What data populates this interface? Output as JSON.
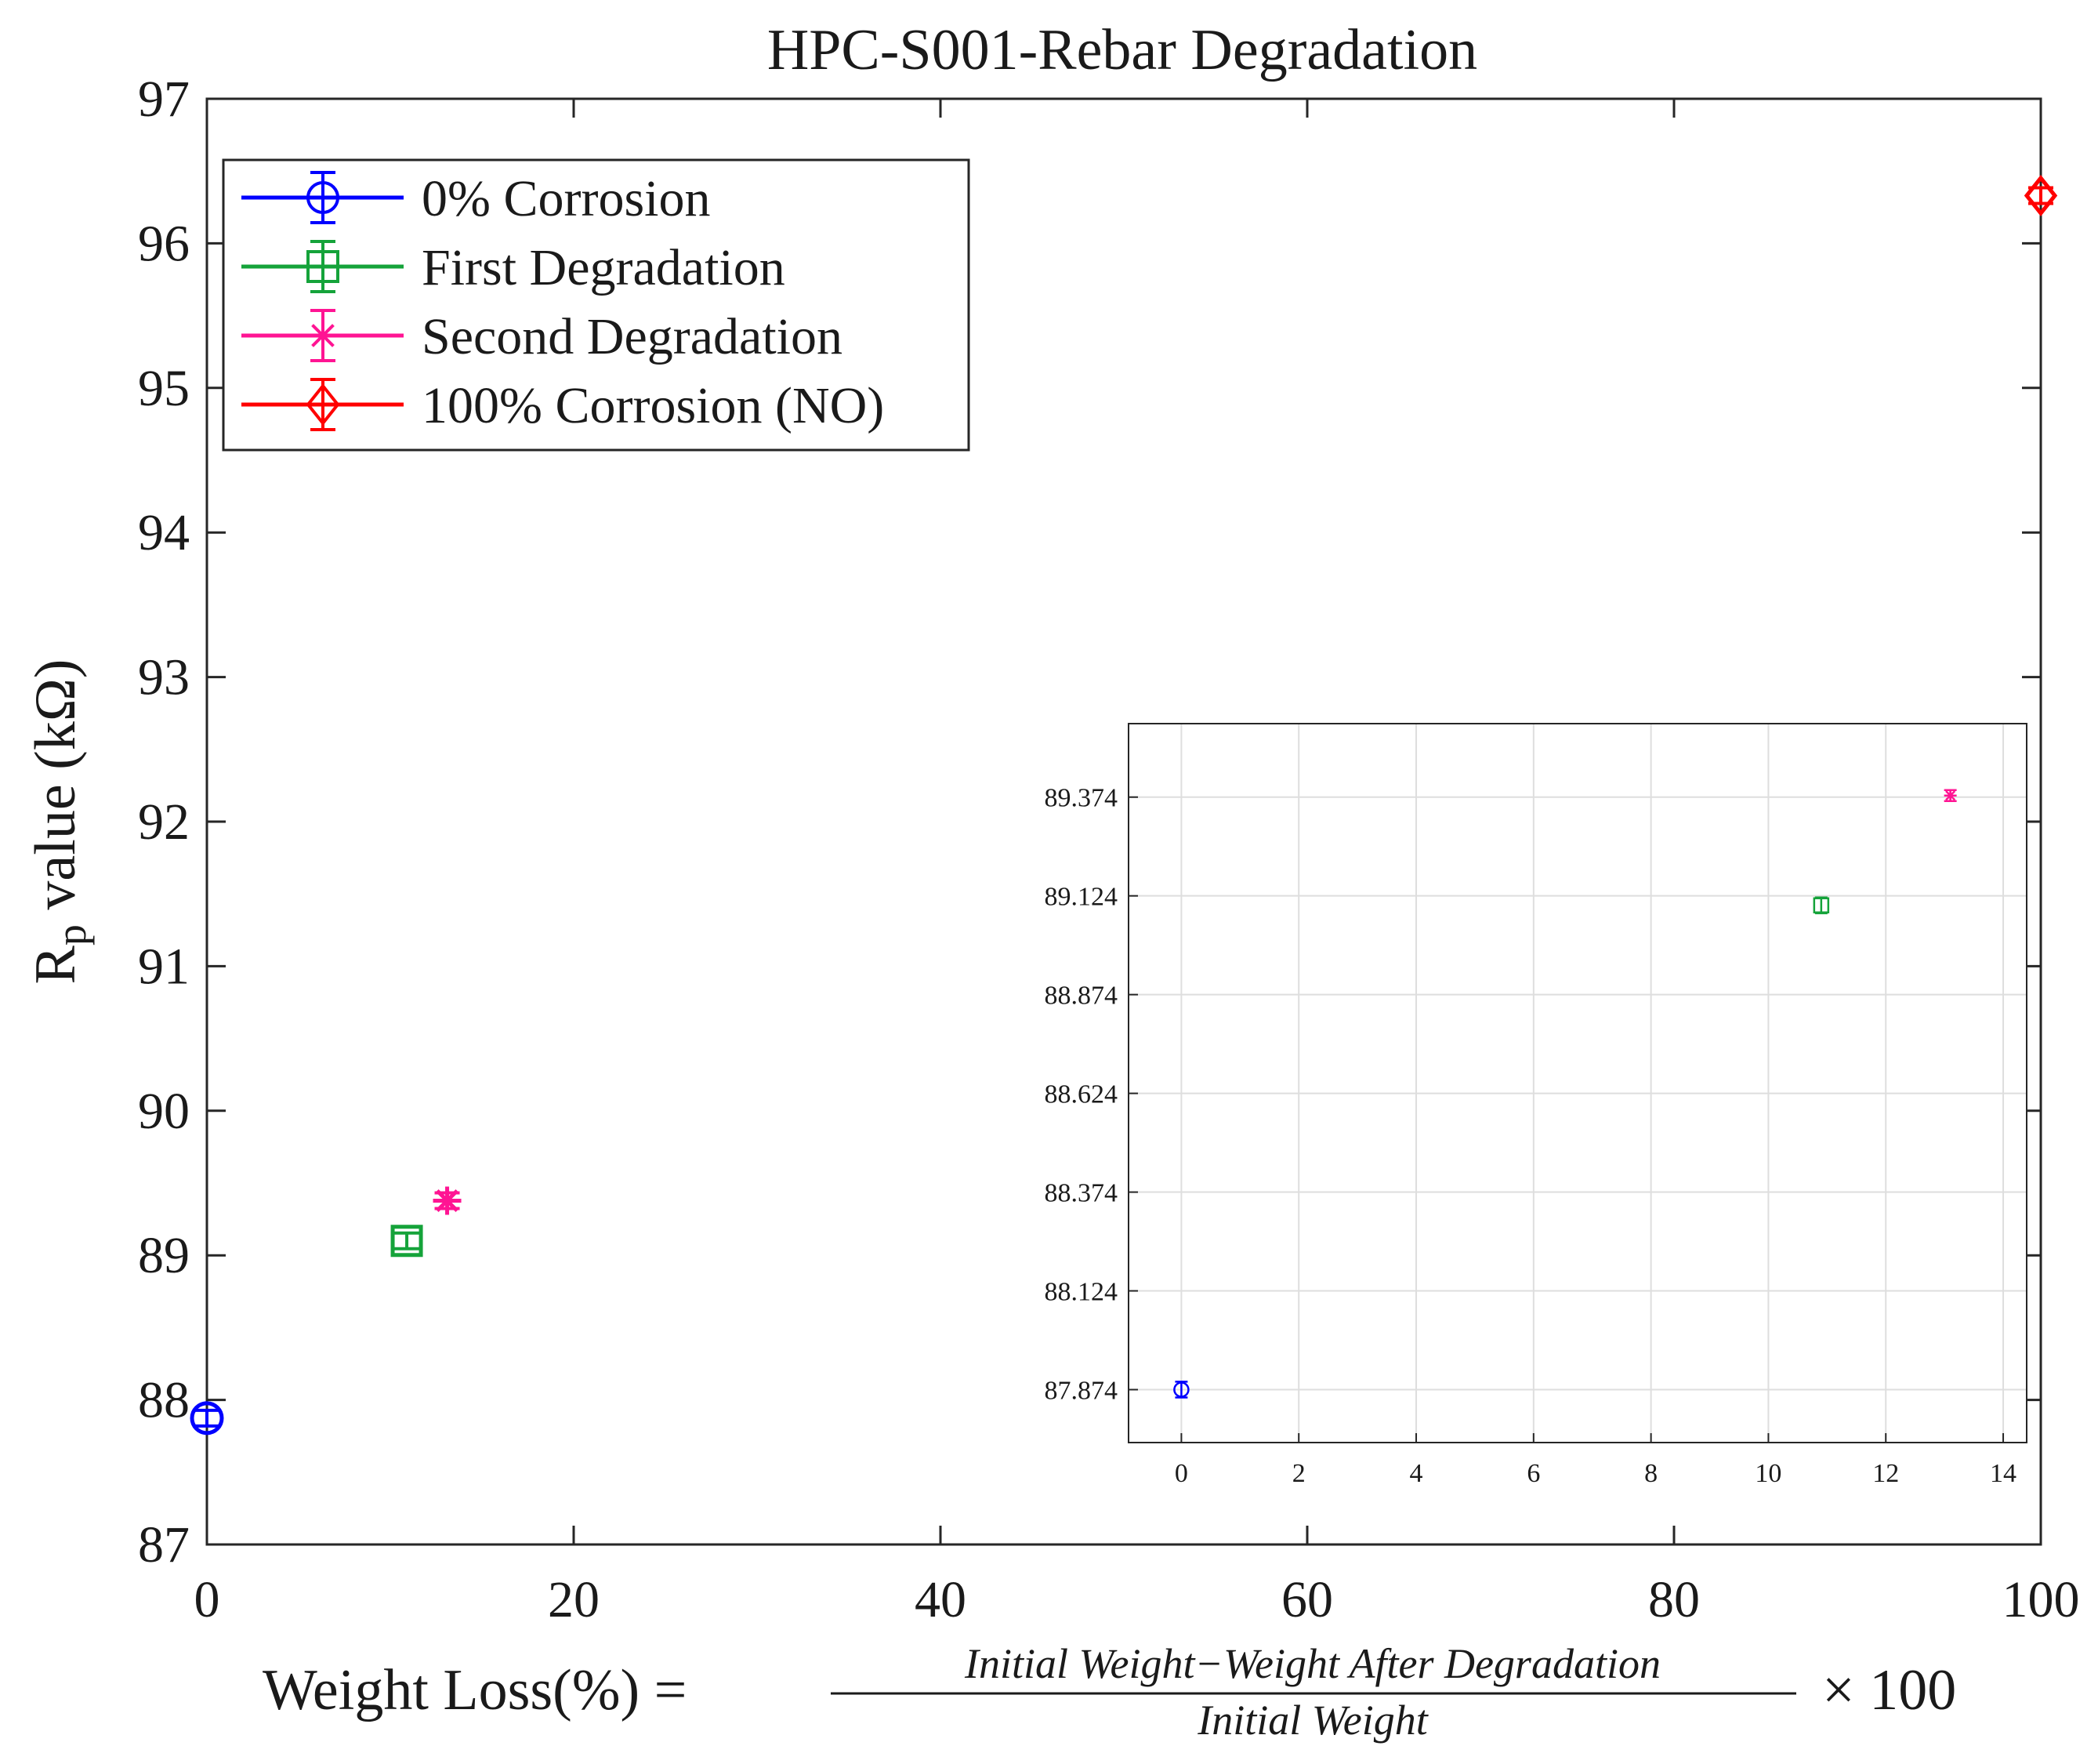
{
  "chart_data": [
    {
      "type": "scatter",
      "title": "HPC-S001-Rebar Degradation",
      "xlabel": {
        "prefix": "Weight Loss(%) =",
        "numerator": "Initial Weight−Weight After Degradation",
        "denominator": "Initial Weight",
        "suffix": "× 100"
      },
      "ylabel": {
        "main": "R",
        "sub": "p",
        "rest": " value (kΩ)"
      },
      "xlim": [
        0,
        100
      ],
      "ylim": [
        87,
        97
      ],
      "xticks": [
        "0",
        "20",
        "40",
        "60",
        "80",
        "100"
      ],
      "yticks": [
        "87",
        "88",
        "89",
        "90",
        "91",
        "92",
        "93",
        "94",
        "95",
        "96",
        "97"
      ],
      "legend_position": "top-left",
      "series": [
        {
          "name": "0% Corrosion",
          "marker": "circle",
          "color": "#0000ff",
          "x": 0,
          "y": 87.874,
          "err": 0.05
        },
        {
          "name": "First Degradation",
          "marker": "square",
          "color": "#15a33a",
          "x": 10.9,
          "y": 89.1,
          "err": 0.05
        },
        {
          "name": "Second Degradation",
          "marker": "star",
          "color": "#ff1493",
          "x": 13.1,
          "y": 89.378,
          "err": 0.03
        },
        {
          "name": "100% Corrosion (NO)",
          "marker": "diamond",
          "color": "#ff0000",
          "x": 100,
          "y": 96.33,
          "err": 0.04
        }
      ]
    },
    {
      "type": "scatter",
      "role": "inset",
      "grid": true,
      "xlim": [
        -0.9,
        14.4
      ],
      "ylim": [
        87.74,
        89.56
      ],
      "xticks": [
        0,
        2,
        4,
        6,
        8,
        10,
        12,
        14
      ],
      "yticks": [
        87.874,
        88.124,
        88.374,
        88.624,
        88.874,
        89.124,
        89.374
      ],
      "xticklabels": [
        "0",
        "2",
        "4",
        "6",
        "8",
        "10",
        "12",
        "14"
      ],
      "yticklabels": [
        "87.874",
        "88.124",
        "88.374",
        "88.624",
        "88.874",
        "89.124",
        "89.374"
      ],
      "series": [
        {
          "name": "0% Corrosion",
          "marker": "circle",
          "color": "#0000ff",
          "x": 0,
          "y": 87.874,
          "err": 0.02
        },
        {
          "name": "First Degradation",
          "marker": "square",
          "color": "#15a33a",
          "x": 10.9,
          "y": 89.1,
          "err": 0.02
        },
        {
          "name": "Second Degradation",
          "marker": "star",
          "color": "#ff1493",
          "x": 13.1,
          "y": 89.378,
          "err": 0.012
        }
      ]
    }
  ]
}
